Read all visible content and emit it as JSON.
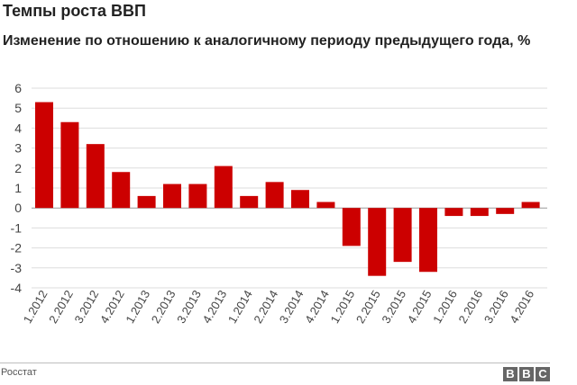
{
  "title": "Темпы роста ВВП",
  "subtitle": "Изменение по отношению к аналогичному периоду предыдущего года, %",
  "source": "Росстат",
  "logo": {
    "letters": [
      "B",
      "B",
      "C"
    ]
  },
  "colors": {
    "bar": "#cc0000",
    "grid": "#dddddd",
    "axis_text": "#444444",
    "zero_line": "#999999"
  },
  "chart_data": {
    "type": "bar",
    "title": "Темпы роста ВВП",
    "subtitle": "Изменение по отношению к аналогичному периоду предыдущего года, %",
    "ylabel": "",
    "xlabel": "",
    "ylim": [
      -4,
      6
    ],
    "yticks": [
      6,
      5,
      4,
      3,
      2,
      1,
      0,
      -1,
      -2,
      -3,
      -4
    ],
    "grid": true,
    "categories": [
      "1.2012",
      "2.2012",
      "3.2012",
      "4.2012",
      "1.2013",
      "2.2013",
      "3.2013",
      "4.2013",
      "1.2014",
      "2.2014",
      "3.2014",
      "4.2014",
      "1.2015",
      "2.2015",
      "3.2015",
      "4.2015",
      "1.2016",
      "2.2016",
      "3.2016",
      "4.2016"
    ],
    "values": [
      5.3,
      4.3,
      3.2,
      1.8,
      0.6,
      1.2,
      1.2,
      2.1,
      0.6,
      1.3,
      0.9,
      0.3,
      -1.9,
      -3.4,
      -2.7,
      -3.2,
      -0.4,
      -0.4,
      -0.3,
      0.3
    ]
  }
}
